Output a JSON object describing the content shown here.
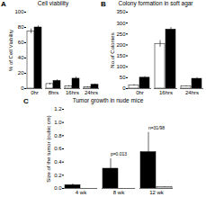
{
  "chart_data": [
    {
      "type": "bar",
      "title": "Cell viability",
      "ylabel": "% of Cell Viability",
      "categories": [
        "0hr",
        "8hrs",
        "16hrs",
        "24hrs"
      ],
      "series": [
        {
          "color": "white",
          "values": [
            75,
            6,
            3,
            2
          ],
          "errors": [
            3,
            1,
            0.8,
            0.5
          ]
        },
        {
          "color": "black",
          "values": [
            80,
            10,
            13,
            5
          ],
          "errors": [
            2,
            1.5,
            2,
            1
          ]
        }
      ],
      "ylim": [
        0,
        100
      ],
      "yticks": [
        0,
        20,
        40,
        60,
        80,
        100
      ],
      "annotations": [
        {
          "text": "A"
        }
      ]
    },
    {
      "type": "bar",
      "title": "Colony formation in soft agar",
      "ylabel": "No.of Colonies",
      "categories": [
        "0hr",
        "16hrs",
        "24hrs"
      ],
      "series": [
        {
          "color": "white",
          "values": [
            15,
            205,
            10
          ],
          "errors": [
            3,
            15,
            2
          ]
        },
        {
          "color": "black",
          "values": [
            50,
            270,
            45
          ],
          "errors": [
            5,
            10,
            5
          ]
        }
      ],
      "ylim": [
        0,
        350
      ],
      "yticks": [
        0,
        50,
        100,
        150,
        200,
        250,
        300,
        350
      ],
      "annotations": [
        {
          "text": "B"
        }
      ]
    },
    {
      "type": "bar",
      "title": "Tumor growth in nude mice",
      "ylabel": "Size of the tumor (cubic cm)",
      "categories": [
        "4 wk",
        "8 wk",
        "12 wk"
      ],
      "series": [
        {
          "color": "black",
          "values": [
            0.05,
            0.3,
            0.55
          ],
          "errors": [
            0.02,
            0.15,
            0.3
          ]
        },
        {
          "color": "white",
          "values": [
            0.0,
            0.0,
            0.02
          ],
          "errors": [
            0.0,
            0.0,
            0.005
          ]
        }
      ],
      "ylim": [
        0,
        1.2
      ],
      "yticks": [
        {
          "value": 0,
          "label": "0.0"
        },
        0.2,
        0.4,
        0.6,
        0.8,
        {
          "value": 1,
          "label": "1.0"
        },
        1.2
      ],
      "annotations": [
        {
          "text": "C"
        },
        {
          "text": "n=31/98",
          "x": "12 wk"
        },
        {
          "text": "p=0.013",
          "x": "8 wk"
        }
      ]
    }
  ]
}
